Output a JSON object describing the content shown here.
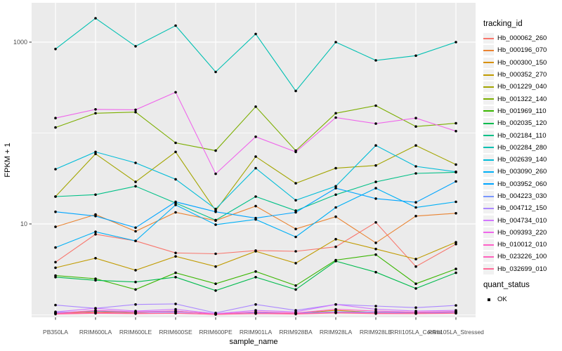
{
  "chart_data": {
    "type": "line",
    "title": "",
    "xlabel": "sample_name",
    "ylabel": "FPKM + 1",
    "x_categories": [
      "PB350LA",
      "RRIM600LA",
      "RRIM600LE",
      "RRIM600SE",
      "RRIM600PE",
      "RRIM901LA",
      "RRIM928BA",
      "RRIM928LA",
      "RRIM928LE",
      "RRII105LA_Control",
      "RRII105LA_Stressed"
    ],
    "y_scale": "log10",
    "y_tick_labels": [
      "1000",
      "10"
    ],
    "y_ticks": [
      1000,
      10
    ],
    "y_minor_gridlines": [
      100,
      1
    ],
    "ylim": [
      0.94,
      2700
    ],
    "grid": true,
    "legend_position": "right",
    "panel_color": "#EBEBEB",
    "gridline_color": "#FFFFFF",
    "point_color": "#000000",
    "axis_text_color": "#4D4D4D",
    "series": [
      {
        "name": "Hb_000062_260",
        "color": "#F8766D",
        "values": [
          3.8,
          7.7,
          6.5,
          4.8,
          4.7,
          5.1,
          5.0,
          5.6,
          10.4,
          3.4,
          6.0
        ]
      },
      {
        "name": "Hb_000196_070",
        "color": "#EA8331",
        "values": [
          9.3,
          12.7,
          8.3,
          13.4,
          10.9,
          15.7,
          8.8,
          12.0,
          6.2,
          12.2,
          13.1
        ]
      },
      {
        "name": "Hb_000300_150",
        "color": "#D89000",
        "values": [
          1.05,
          1.08,
          1.06,
          1.1,
          1.02,
          1.07,
          1.04,
          1.12,
          1.06,
          1.05,
          1.08
        ]
      },
      {
        "name": "Hb_000352_270",
        "color": "#C09B00",
        "values": [
          3.3,
          4.2,
          3.1,
          4.4,
          3.4,
          5.0,
          3.7,
          6.8,
          5.3,
          4.1,
          6.3
        ]
      },
      {
        "name": "Hb_001229_040",
        "color": "#A3A500",
        "values": [
          20,
          59,
          29,
          62,
          14,
          55,
          28,
          41,
          44,
          73,
          45
        ]
      },
      {
        "name": "Hb_001322_140",
        "color": "#7CAE00",
        "values": [
          115,
          165,
          170,
          78,
          64,
          195,
          64,
          165,
          200,
          118,
          128
        ]
      },
      {
        "name": "Hb_001969_110",
        "color": "#39B600",
        "values": [
          2.7,
          2.5,
          1.9,
          2.9,
          2.2,
          3.0,
          2.1,
          4.0,
          4.6,
          2.2,
          3.2
        ]
      },
      {
        "name": "Hb_002035_120",
        "color": "#00BB4E",
        "values": [
          2.6,
          2.4,
          2.3,
          2.6,
          1.85,
          2.6,
          1.9,
          3.9,
          2.95,
          1.95,
          2.9
        ]
      },
      {
        "name": "Hb_002184_110",
        "color": "#00C087",
        "values": [
          20,
          21,
          26,
          17,
          11,
          20,
          14,
          21,
          29,
          36,
          37
        ]
      },
      {
        "name": "Hb_002284_280",
        "color": "#00C0B2",
        "values": [
          840,
          1830,
          900,
          1520,
          470,
          1230,
          290,
          1000,
          630,
          710,
          1000
        ]
      },
      {
        "name": "Hb_002639_140",
        "color": "#00BCD8",
        "values": [
          40,
          62,
          47,
          31,
          14.6,
          41,
          18.2,
          26,
          73,
          43,
          37.5
        ]
      },
      {
        "name": "Hb_003090_260",
        "color": "#00B0F6",
        "values": [
          5.5,
          8.2,
          6.5,
          16.2,
          9.8,
          11.2,
          7.2,
          15.2,
          24.7,
          15.2,
          17.5
        ]
      },
      {
        "name": "Hb_003952_060",
        "color": "#00A5FF",
        "values": [
          13.6,
          12.2,
          9.1,
          17.5,
          13.6,
          11.6,
          13.4,
          24.7,
          19,
          17.3,
          29.3
        ]
      },
      {
        "name": "Hb_004223_030",
        "color": "#7997FF",
        "values": [
          1.06,
          1.1,
          1.07,
          1.08,
          1.03,
          1.06,
          1.05,
          1.08,
          1.07,
          1.06,
          1.07
        ]
      },
      {
        "name": "Hb_004712_150",
        "color": "#AC88FF",
        "values": [
          1.28,
          1.18,
          1.3,
          1.32,
          1.05,
          1.3,
          1.12,
          1.3,
          1.25,
          1.2,
          1.27
        ]
      },
      {
        "name": "Hb_004734_010",
        "color": "#D277FF",
        "values": [
          1.08,
          1.18,
          1.1,
          1.15,
          1.03,
          1.12,
          1.08,
          1.3,
          1.15,
          1.1,
          1.12
        ]
      },
      {
        "name": "Hb_009393_220",
        "color": "#EF67EB",
        "values": [
          146,
          182,
          180,
          281,
          35.6,
          91,
          62,
          148,
          127,
          146,
          105
        ]
      },
      {
        "name": "Hb_010012_010",
        "color": "#FF61C7",
        "values": [
          1.04,
          1.12,
          1.08,
          1.1,
          1.02,
          1.08,
          1.05,
          1.15,
          1.1,
          1.07,
          1.09
        ]
      },
      {
        "name": "Hb_023226_100",
        "color": "#FF62BC",
        "values": [
          1.03,
          1.06,
          1.04,
          1.05,
          1.01,
          1.04,
          1.03,
          1.06,
          1.05,
          1.04,
          1.05
        ]
      },
      {
        "name": "Hb_032699_010",
        "color": "#FF6A98",
        "values": [
          1.02,
          1.04,
          1.03,
          1.04,
          1.01,
          1.03,
          1.02,
          1.05,
          1.03,
          1.03,
          1.04
        ]
      }
    ]
  },
  "legend": {
    "tracking_title": "tracking_id",
    "quant_title": "quant_status",
    "quant_items": [
      {
        "label": "OK"
      }
    ]
  }
}
